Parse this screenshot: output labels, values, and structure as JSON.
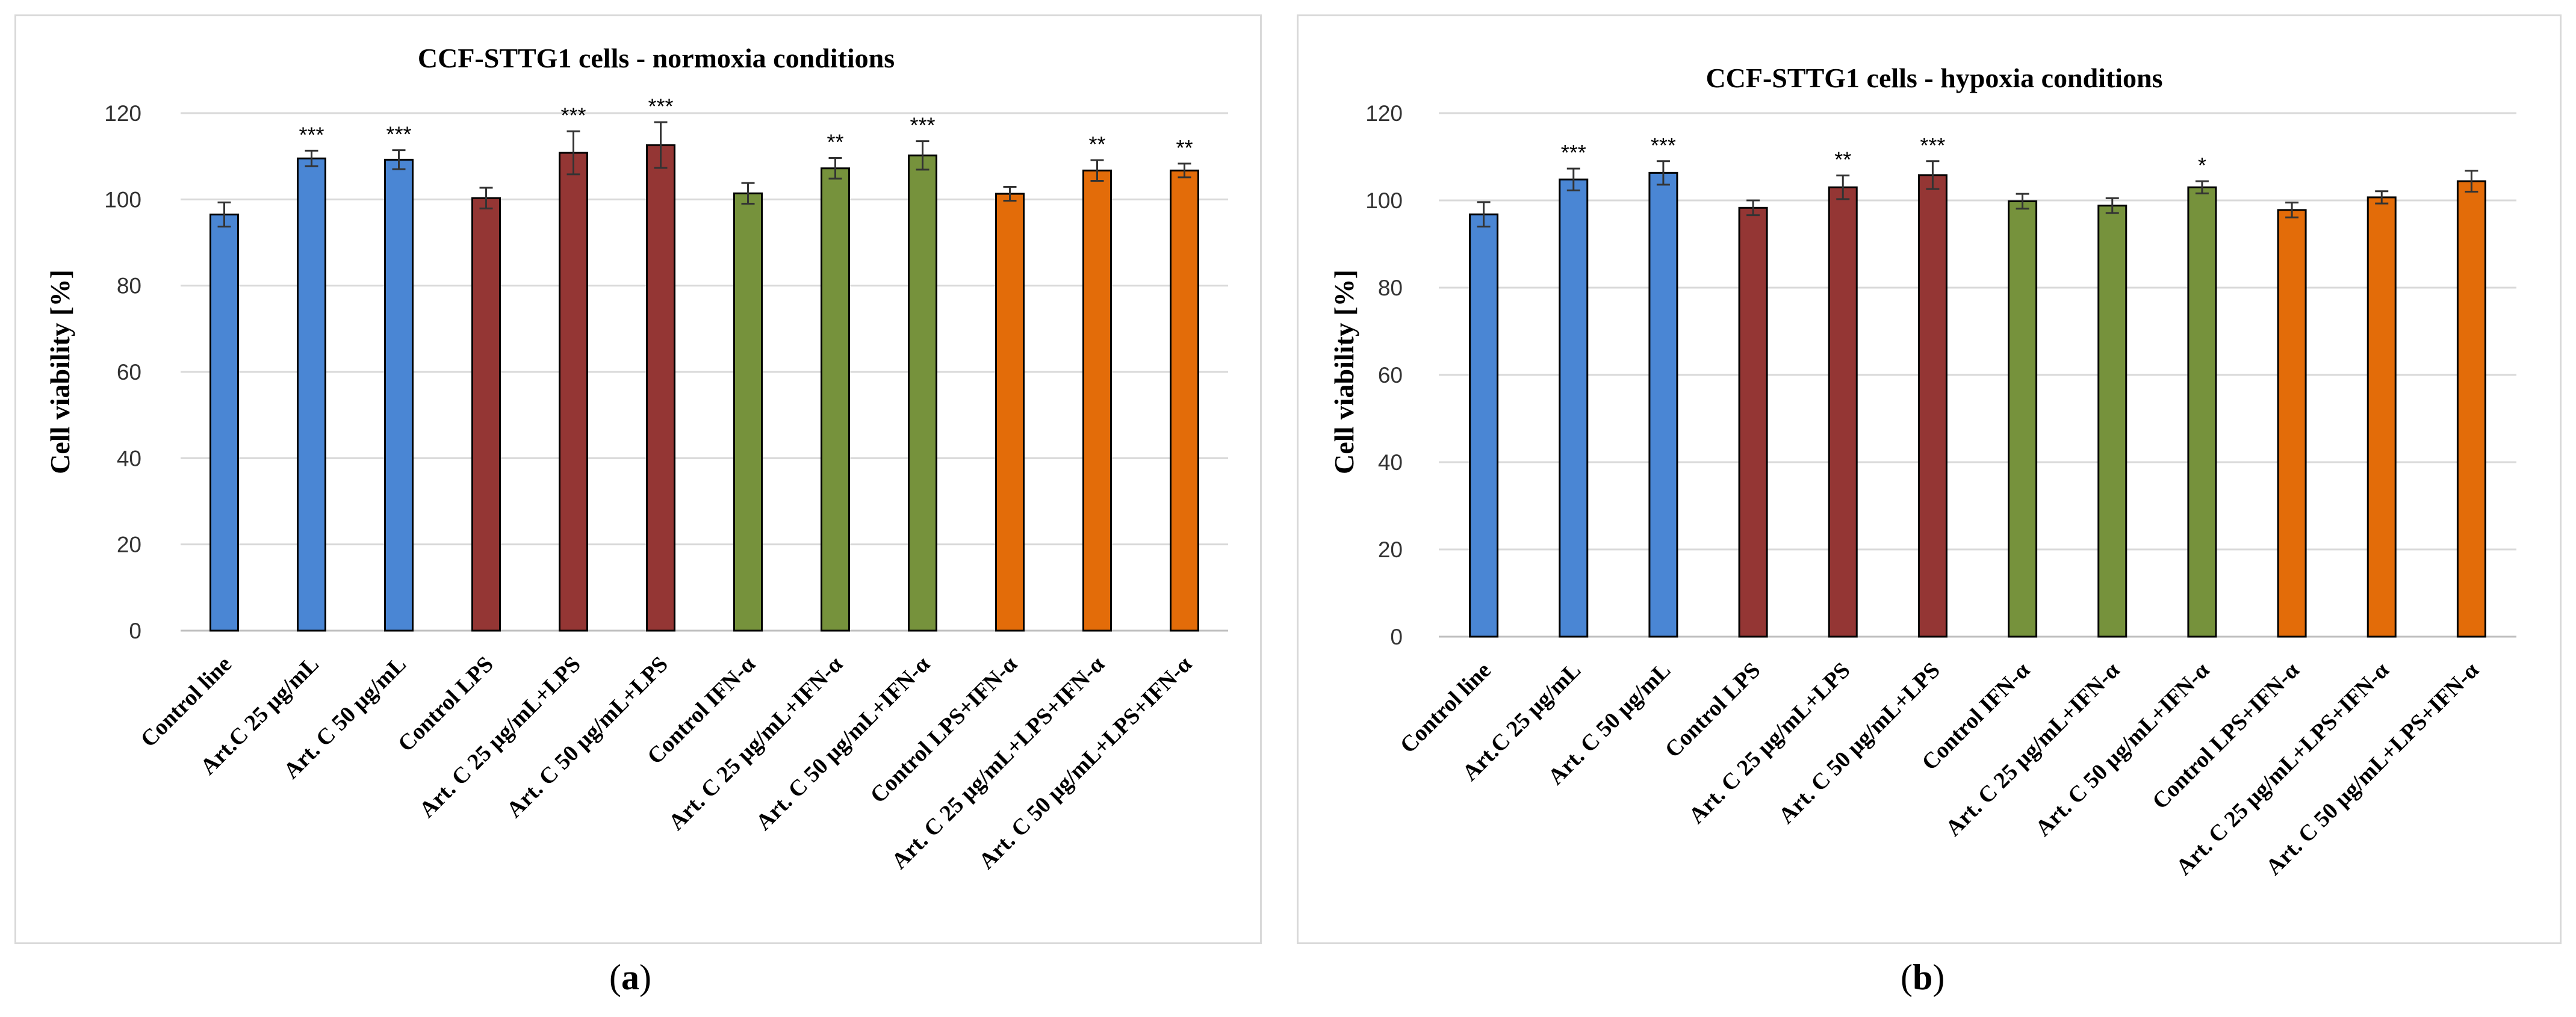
{
  "colors": {
    "blue": "#4a86d4",
    "maroon": "#943634",
    "green": "#76923c",
    "orange": "#e36c09"
  },
  "panel_labels": [
    "a",
    "b"
  ],
  "chart_data": [
    {
      "type": "bar",
      "title": "CCF-STTG1  cells - normoxia  conditions",
      "xlabel": "",
      "ylabel": "Cell viability  [%]",
      "ylim": [
        0,
        120
      ],
      "yticks": [
        0,
        20,
        40,
        60,
        80,
        100,
        120
      ],
      "grid": true,
      "categories": [
        "Control line",
        "Art.C 25 µg/mL",
        "Art. C 50 µg/mL",
        "Control LPS",
        "Art. C 25 µg/mL+LPS",
        "Art. C 50 µg/mL+LPS",
        "Control  IFN-α",
        "Art. C 25 µg/mL+IFN-α",
        "Art. C 50 µg/mL+IFN-α",
        "Control  LPS+IFN-α",
        "Art. C 25 µg/mL+LPS+IFN-α",
        "Art. C 50 µg/mL+LPS+IFN-α"
      ],
      "values": [
        96.5,
        109.5,
        109.2,
        100.3,
        110.8,
        112.6,
        101.4,
        107.2,
        110.2,
        101.3,
        106.7,
        106.7
      ],
      "errors": [
        2.8,
        1.8,
        2.2,
        2.4,
        5.0,
        5.3,
        2.4,
        2.4,
        3.3,
        1.6,
        2.4,
        1.6
      ],
      "colors": [
        "blue",
        "blue",
        "blue",
        "maroon",
        "maroon",
        "maroon",
        "green",
        "green",
        "green",
        "orange",
        "orange",
        "orange"
      ],
      "significance": [
        "",
        "***",
        "***",
        "",
        "***",
        "***",
        "",
        "**",
        "***",
        "",
        "**",
        "**"
      ]
    },
    {
      "type": "bar",
      "title": "CCF-STTG1  cells - hypoxia  conditions",
      "xlabel": "",
      "ylabel": "Cell viability  [%]",
      "ylim": [
        0,
        120
      ],
      "yticks": [
        0,
        20,
        40,
        60,
        80,
        100,
        120
      ],
      "grid": true,
      "categories": [
        "Control line",
        "Art.C 25 µg/mL",
        "Art. C 50 µg/mL",
        "Control LPS",
        "Art. C 25 µg/mL+LPS",
        "Art. C 50 µg/mL+LPS",
        "Control  IFN-α",
        "Art. C 25 µg/mL+IFN-α",
        "Art. C 50 µg/mL+IFN-α",
        "Control  LPS+IFN-α",
        "Art. C 25 µg/mL+LPS+IFN-α",
        "Art. C 50 µg/mL+LPS+IFN-α"
      ],
      "values": [
        96.8,
        104.8,
        106.3,
        98.3,
        103.0,
        105.8,
        99.8,
        98.8,
        103.0,
        97.8,
        100.7,
        104.4
      ],
      "errors": [
        2.8,
        2.5,
        2.7,
        1.7,
        2.7,
        3.2,
        1.7,
        1.7,
        1.4,
        1.7,
        1.4,
        2.4
      ],
      "colors": [
        "blue",
        "blue",
        "blue",
        "maroon",
        "maroon",
        "maroon",
        "green",
        "green",
        "green",
        "orange",
        "orange",
        "orange"
      ],
      "significance": [
        "",
        "***",
        "***",
        "",
        "**",
        "***",
        "",
        "",
        "*",
        "",
        "",
        ""
      ]
    }
  ]
}
